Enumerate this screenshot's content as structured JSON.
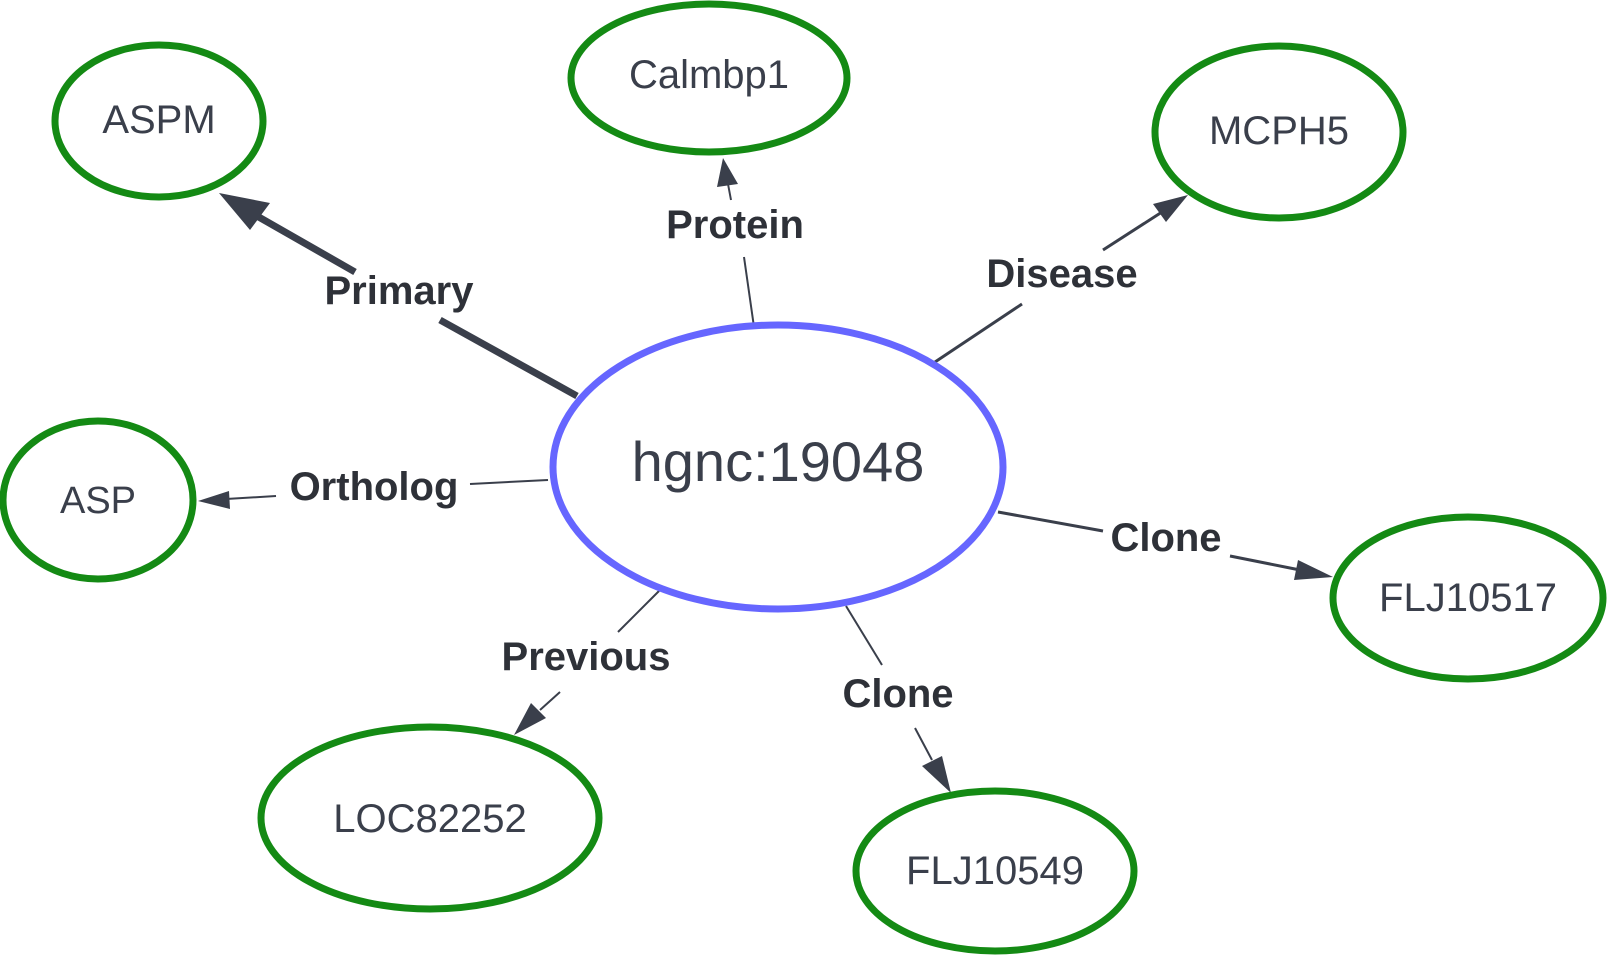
{
  "diagram": {
    "center": {
      "label": "hgnc:19048",
      "color": "#6666ff"
    },
    "node_color": "#148a14",
    "edge_color": "#3a3f4b",
    "nodes": [
      {
        "id": "aspm",
        "label": "ASPM",
        "relation": "Primary"
      },
      {
        "id": "calmbp1",
        "label": "Calmbp1",
        "relation": "Protein"
      },
      {
        "id": "mcph5",
        "label": "MCPH5",
        "relation": "Disease"
      },
      {
        "id": "asp",
        "label": "ASP",
        "relation": "Ortholog"
      },
      {
        "id": "flj10517",
        "label": "FLJ10517",
        "relation": "Clone"
      },
      {
        "id": "loc82252",
        "label": "LOC82252",
        "relation": "Previous"
      },
      {
        "id": "flj10549",
        "label": "FLJ10549",
        "relation": "Clone"
      }
    ]
  }
}
